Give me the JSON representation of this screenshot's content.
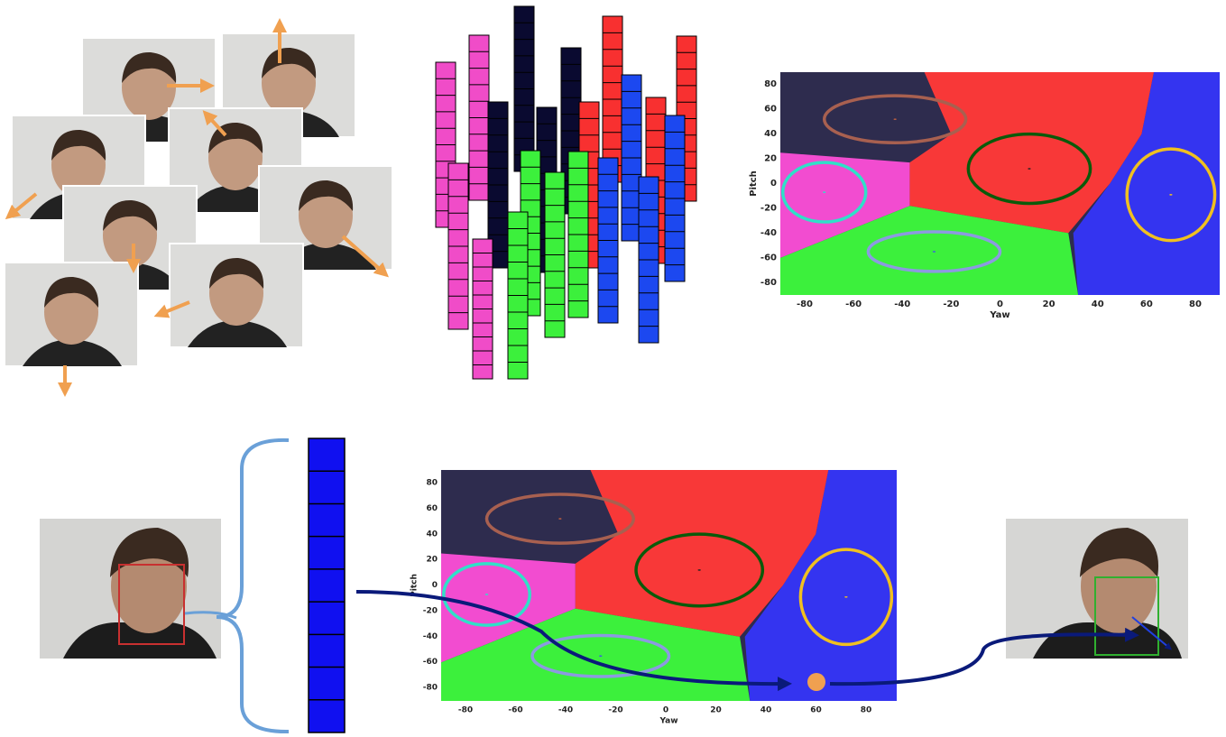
{
  "plots": [
    {
      "xticks": [
        -80,
        -60,
        -40,
        -20,
        0,
        20,
        40,
        60,
        80
      ],
      "yticks": [
        80,
        60,
        40,
        20,
        0,
        -20,
        -40,
        -60,
        -80
      ],
      "xlabel": "Yaw",
      "ylabel": "Pitch"
    },
    {
      "xticks": [
        -80,
        -60,
        -40,
        -20,
        0,
        20,
        40,
        60,
        80
      ],
      "yticks": [
        80,
        60,
        40,
        20,
        0,
        -20,
        -40,
        -60,
        -80
      ],
      "xlabel": "Yaw",
      "ylabel": "Pitch"
    }
  ]
}
